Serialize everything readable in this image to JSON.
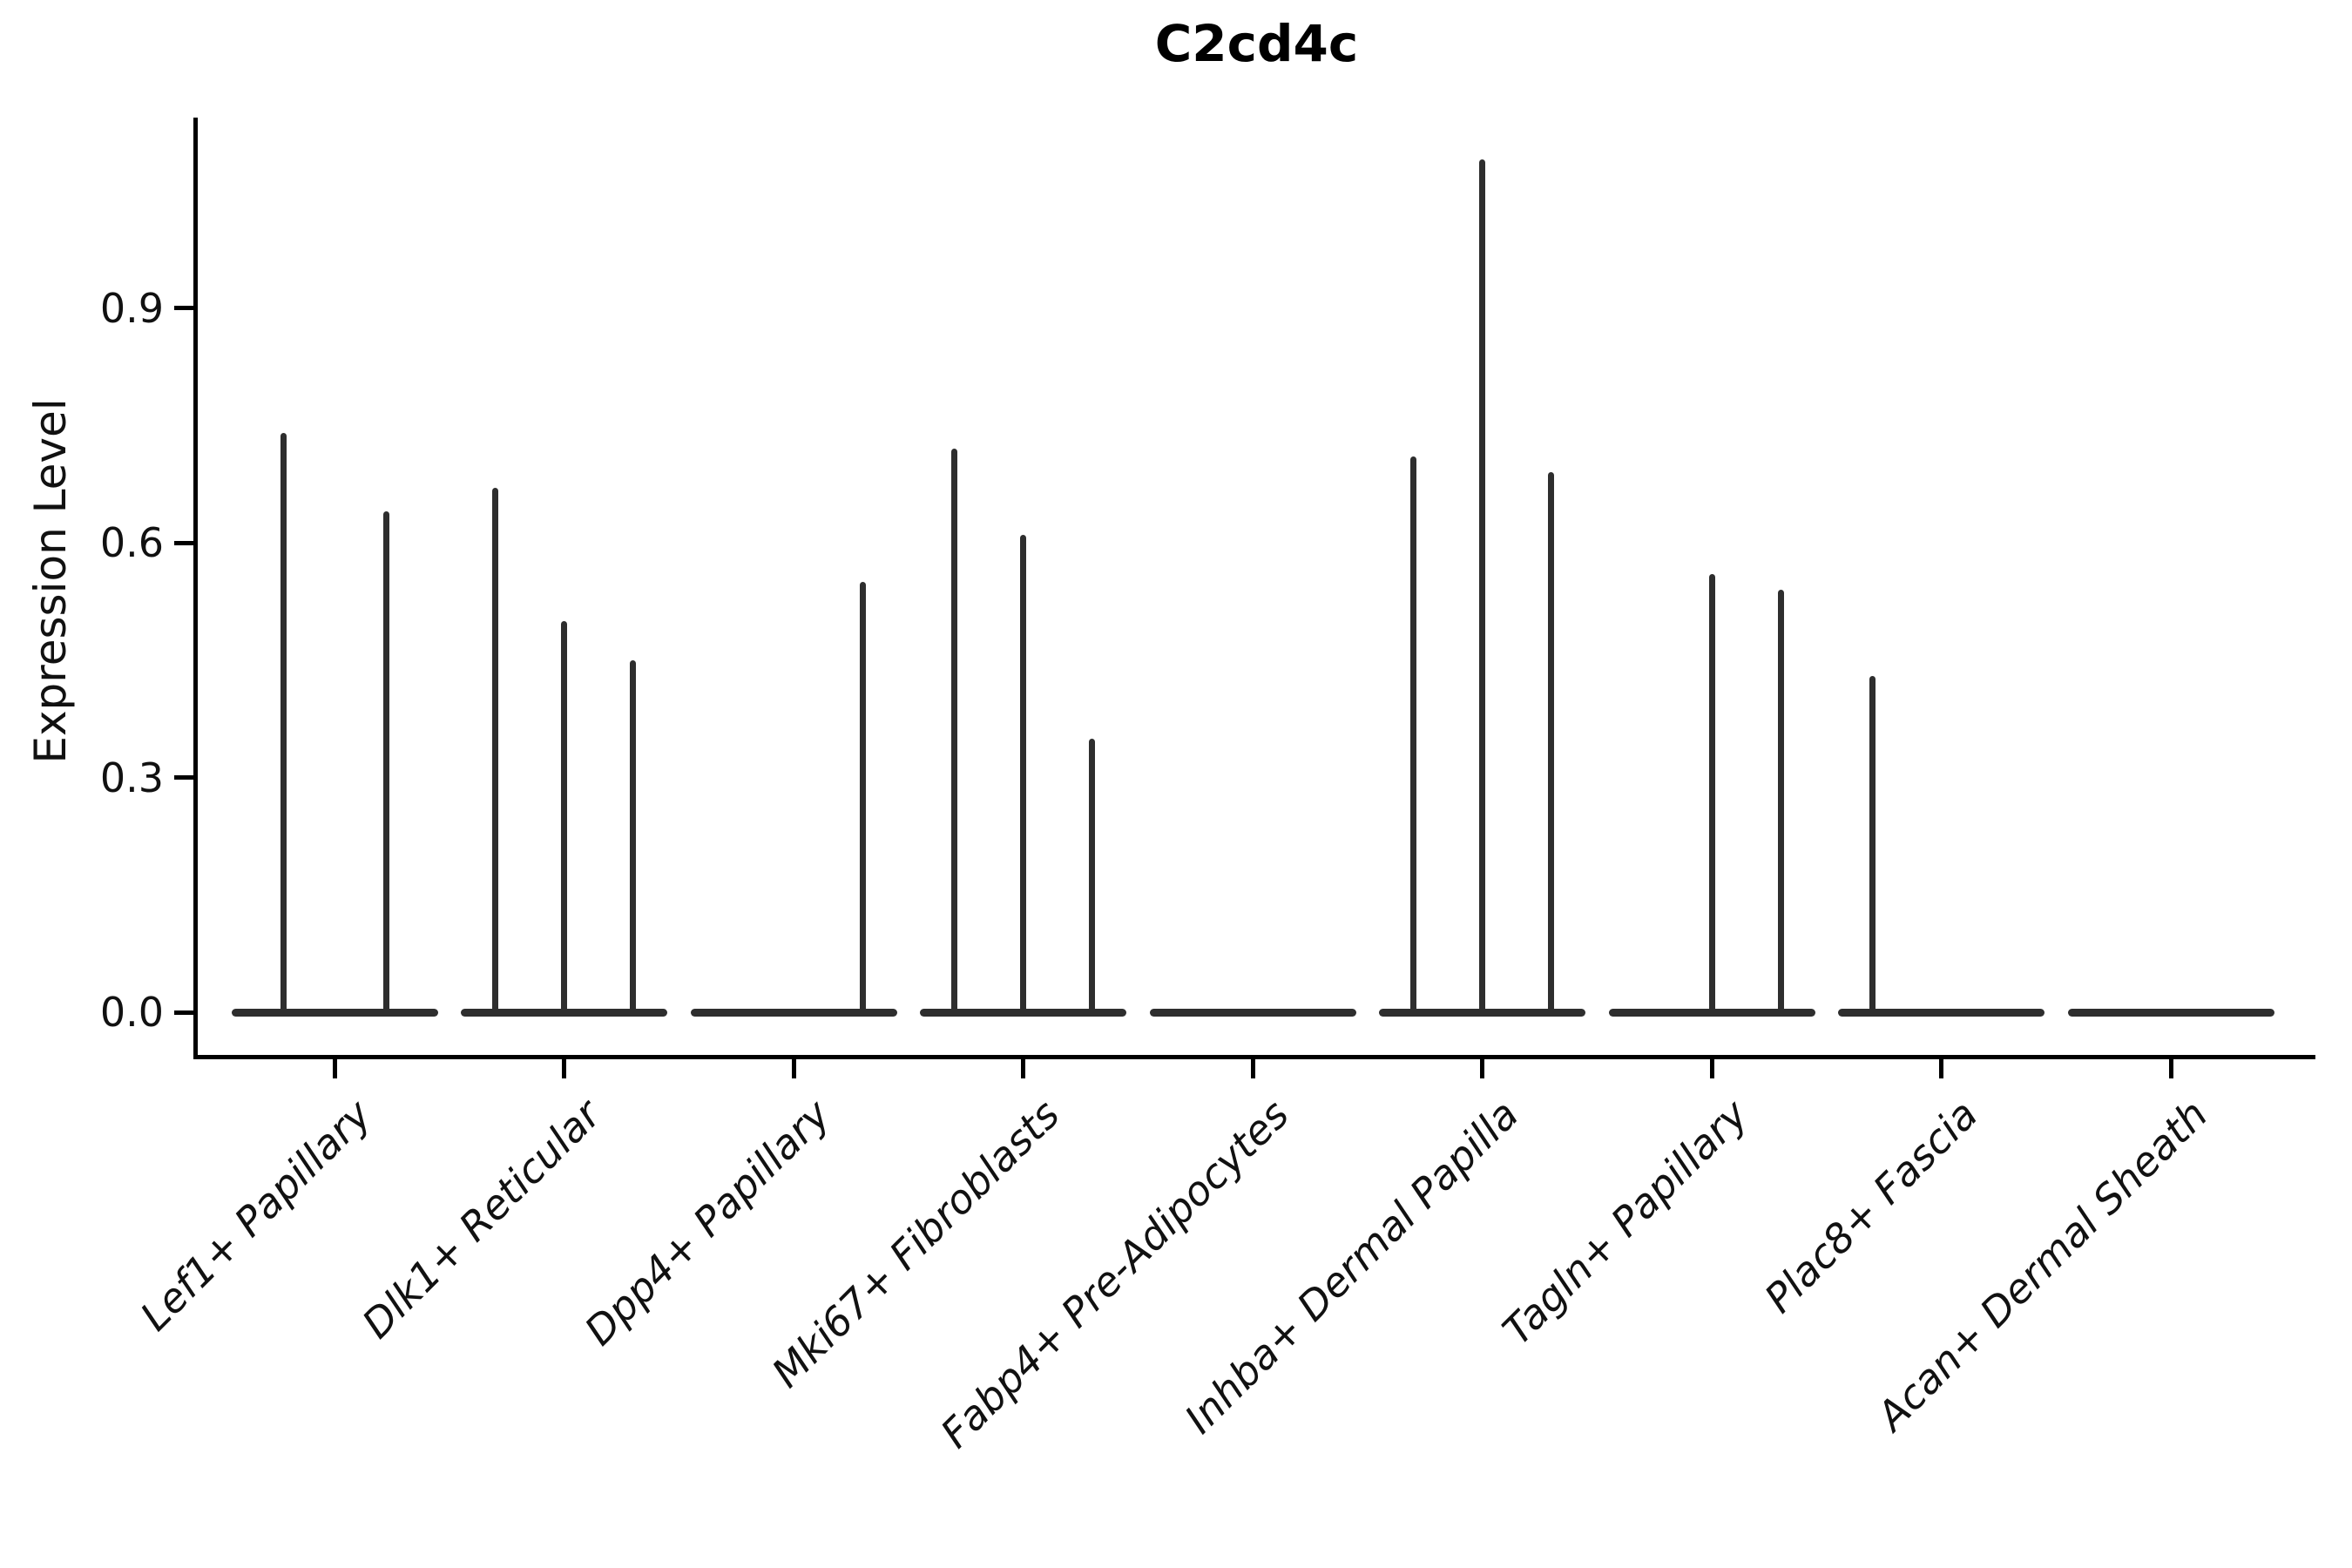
{
  "chart_data": {
    "type": "violin",
    "title": "C2cd4c",
    "ylabel": "Expression Level",
    "xlabel": "",
    "yticks": [
      "0.0",
      "0.3",
      "0.6",
      "0.9"
    ],
    "ytick_values": [
      0.0,
      0.3,
      0.6,
      0.9
    ],
    "ylim": [
      0,
      1.12
    ],
    "grid": "off",
    "legend": "none",
    "ink_color": "#000000",
    "violin_color": "#2e2e2e",
    "categories": [
      "Lef1+ Papillary",
      "Dlk1+ Reticular",
      "Dpp4+ Papillary",
      "Mki67+ Fibroblasts",
      "Fabp4+ Pre-Adipocytes",
      "Inhba+ Dermal Papilla",
      "Tagln+ Papillary",
      "Plac8+ Fascia",
      "Acan+ Dermal Sheath"
    ],
    "violins": [
      {
        "category": "Lef1+ Papillary",
        "spikes": [
          {
            "dx": -59,
            "max": 0.74
          },
          {
            "dx": 59,
            "max": 0.64
          }
        ]
      },
      {
        "category": "Dlk1+ Reticular",
        "spikes": [
          {
            "dx": -79,
            "max": 0.67
          },
          {
            "dx": 0,
            "max": 0.5
          },
          {
            "dx": 79,
            "max": 0.45
          }
        ]
      },
      {
        "category": "Dpp4+ Papillary",
        "spikes": [
          {
            "dx": 79,
            "max": 0.55
          }
        ]
      },
      {
        "category": "Mki67+ Fibroblasts",
        "spikes": [
          {
            "dx": -79,
            "max": 0.72
          },
          {
            "dx": 0,
            "max": 0.61
          },
          {
            "dx": 79,
            "max": 0.35
          }
        ]
      },
      {
        "category": "Fabp4+ Pre-Adipocytes",
        "spikes": []
      },
      {
        "category": "Inhba+ Dermal Papilla",
        "spikes": [
          {
            "dx": -79,
            "max": 0.71
          },
          {
            "dx": 0,
            "max": 1.09
          },
          {
            "dx": 79,
            "max": 0.69
          }
        ]
      },
      {
        "category": "Tagln+ Papillary",
        "spikes": [
          {
            "dx": 0,
            "max": 0.56
          },
          {
            "dx": 79,
            "max": 0.54
          }
        ]
      },
      {
        "category": "Plac8+ Fascia",
        "spikes": [
          {
            "dx": -79,
            "max": 0.43
          }
        ]
      },
      {
        "category": "Acan+ Dermal Sheath",
        "spikes": []
      }
    ]
  }
}
